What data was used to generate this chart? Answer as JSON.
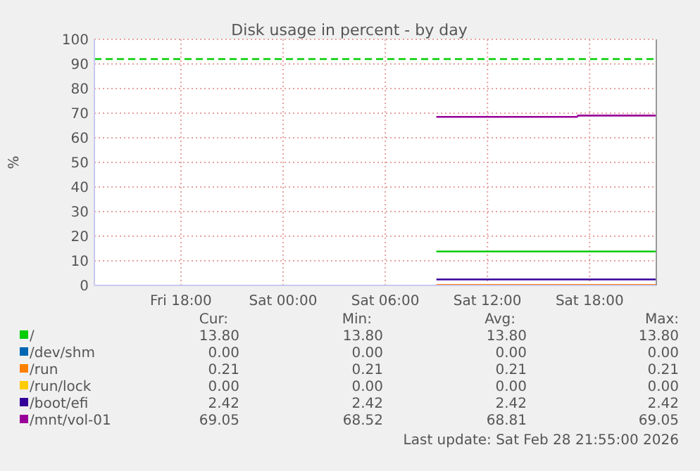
{
  "chart_data": {
    "type": "line",
    "title": "Disk usage in percent - by day",
    "ylabel": "%",
    "xlim": [
      "2026-02-27T12:55",
      "2026-02-28T21:55"
    ],
    "xticks": [
      {
        "value": "2026-02-27T18:00",
        "label": "Fri 18:00"
      },
      {
        "value": "2026-02-28T00:00",
        "label": "Sat 00:00"
      },
      {
        "value": "2026-02-28T06:00",
        "label": "Sat 06:00"
      },
      {
        "value": "2026-02-28T12:00",
        "label": "Sat 12:00"
      },
      {
        "value": "2026-02-28T18:00",
        "label": "Sat 18:00"
      }
    ],
    "ylim": [
      0,
      100
    ],
    "yticks": [
      0,
      10,
      20,
      30,
      40,
      50,
      60,
      70,
      80,
      90,
      100
    ],
    "grid": true,
    "legend": "bottom",
    "line_style": "solid",
    "marker": "none",
    "series": [
      {
        "name": "/",
        "color": "#00cc00",
        "x": [
          "2026-02-28T09:00",
          "2026-02-28T21:55"
        ],
        "values": [
          13.8,
          13.8
        ]
      },
      {
        "name": "/dev/shm",
        "color": "#0066b3",
        "values": [
          null
        ]
      },
      {
        "name": "/run",
        "color": "#ff8000",
        "x": [
          "2026-02-28T09:00",
          "2026-02-28T21:55"
        ],
        "values": [
          0.21,
          0.21
        ]
      },
      {
        "name": "/run/lock",
        "color": "#ffcc00",
        "values": [
          null
        ]
      },
      {
        "name": "/boot/efi",
        "color": "#330099",
        "x": [
          "2026-02-28T09:00",
          "2026-02-28T21:55"
        ],
        "values": [
          2.42,
          2.42
        ]
      },
      {
        "name": "/mnt/vol-01",
        "color": "#990099",
        "x": [
          "2026-02-28T09:00",
          "2026-02-28T17:15",
          "2026-02-28T17:20",
          "2026-02-28T21:55"
        ],
        "values": [
          68.52,
          68.52,
          69.05,
          69.05
        ]
      }
    ],
    "ref_lines": [
      {
        "axis": "y",
        "value": 92,
        "color": "#00cc00",
        "line_style": "dashed"
      }
    ],
    "annotations": [
      "Cur:",
      "Min:",
      "Avg:",
      "Max:",
      "13.80",
      "13.80",
      "13.80",
      "13.80",
      "0.00",
      "0.00",
      "0.00",
      "0.00",
      "0.21",
      "0.21",
      "0.21",
      "0.21",
      "0.00",
      "0.00",
      "0.00",
      "0.00",
      "2.42",
      "2.42",
      "2.42",
      "2.42",
      "69.05",
      "68.52",
      "68.81",
      "69.05",
      "Last update: Sat Feb 28 21:55:00 2026"
    ]
  }
}
